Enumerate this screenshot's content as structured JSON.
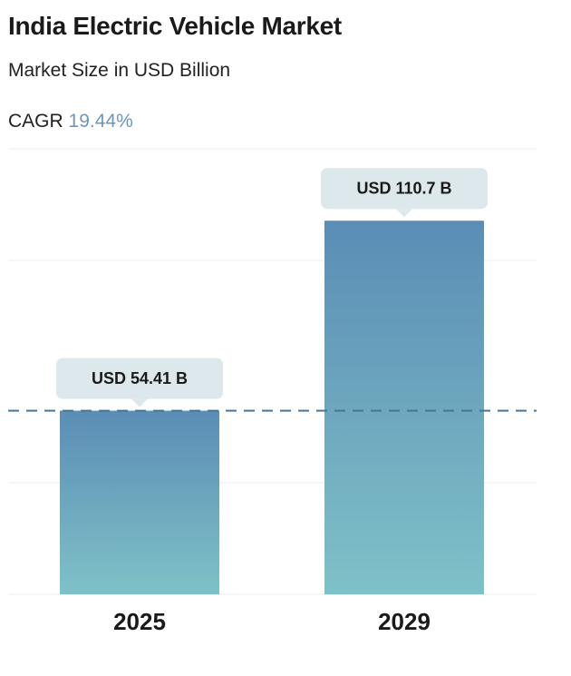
{
  "header": {
    "title": "India Electric Vehicle Market",
    "subtitle": "Market Size in USD Billion",
    "cagr_label": "CAGR",
    "cagr_value": "19.44%"
  },
  "colors": {
    "bar_top": "#5b8db5",
    "bar_bottom": "#7fc1c8",
    "callout_bg": "#dde8ec",
    "dashed_line": "#4a7593",
    "grid": "#ececec",
    "cagr_accent": "#6f97b8"
  },
  "chart_data": {
    "type": "bar",
    "title": "India Electric Vehicle Market",
    "ylabel": "Market Size in USD Billion",
    "categories": [
      "2025",
      "2029"
    ],
    "values": [
      54.41,
      110.7
    ],
    "data_labels": [
      "USD 54.41 B",
      "USD 110.7 B"
    ],
    "reference_line": {
      "value": 54.41,
      "style": "dashed"
    },
    "ylim": [
      0,
      132
    ],
    "grid": true
  }
}
